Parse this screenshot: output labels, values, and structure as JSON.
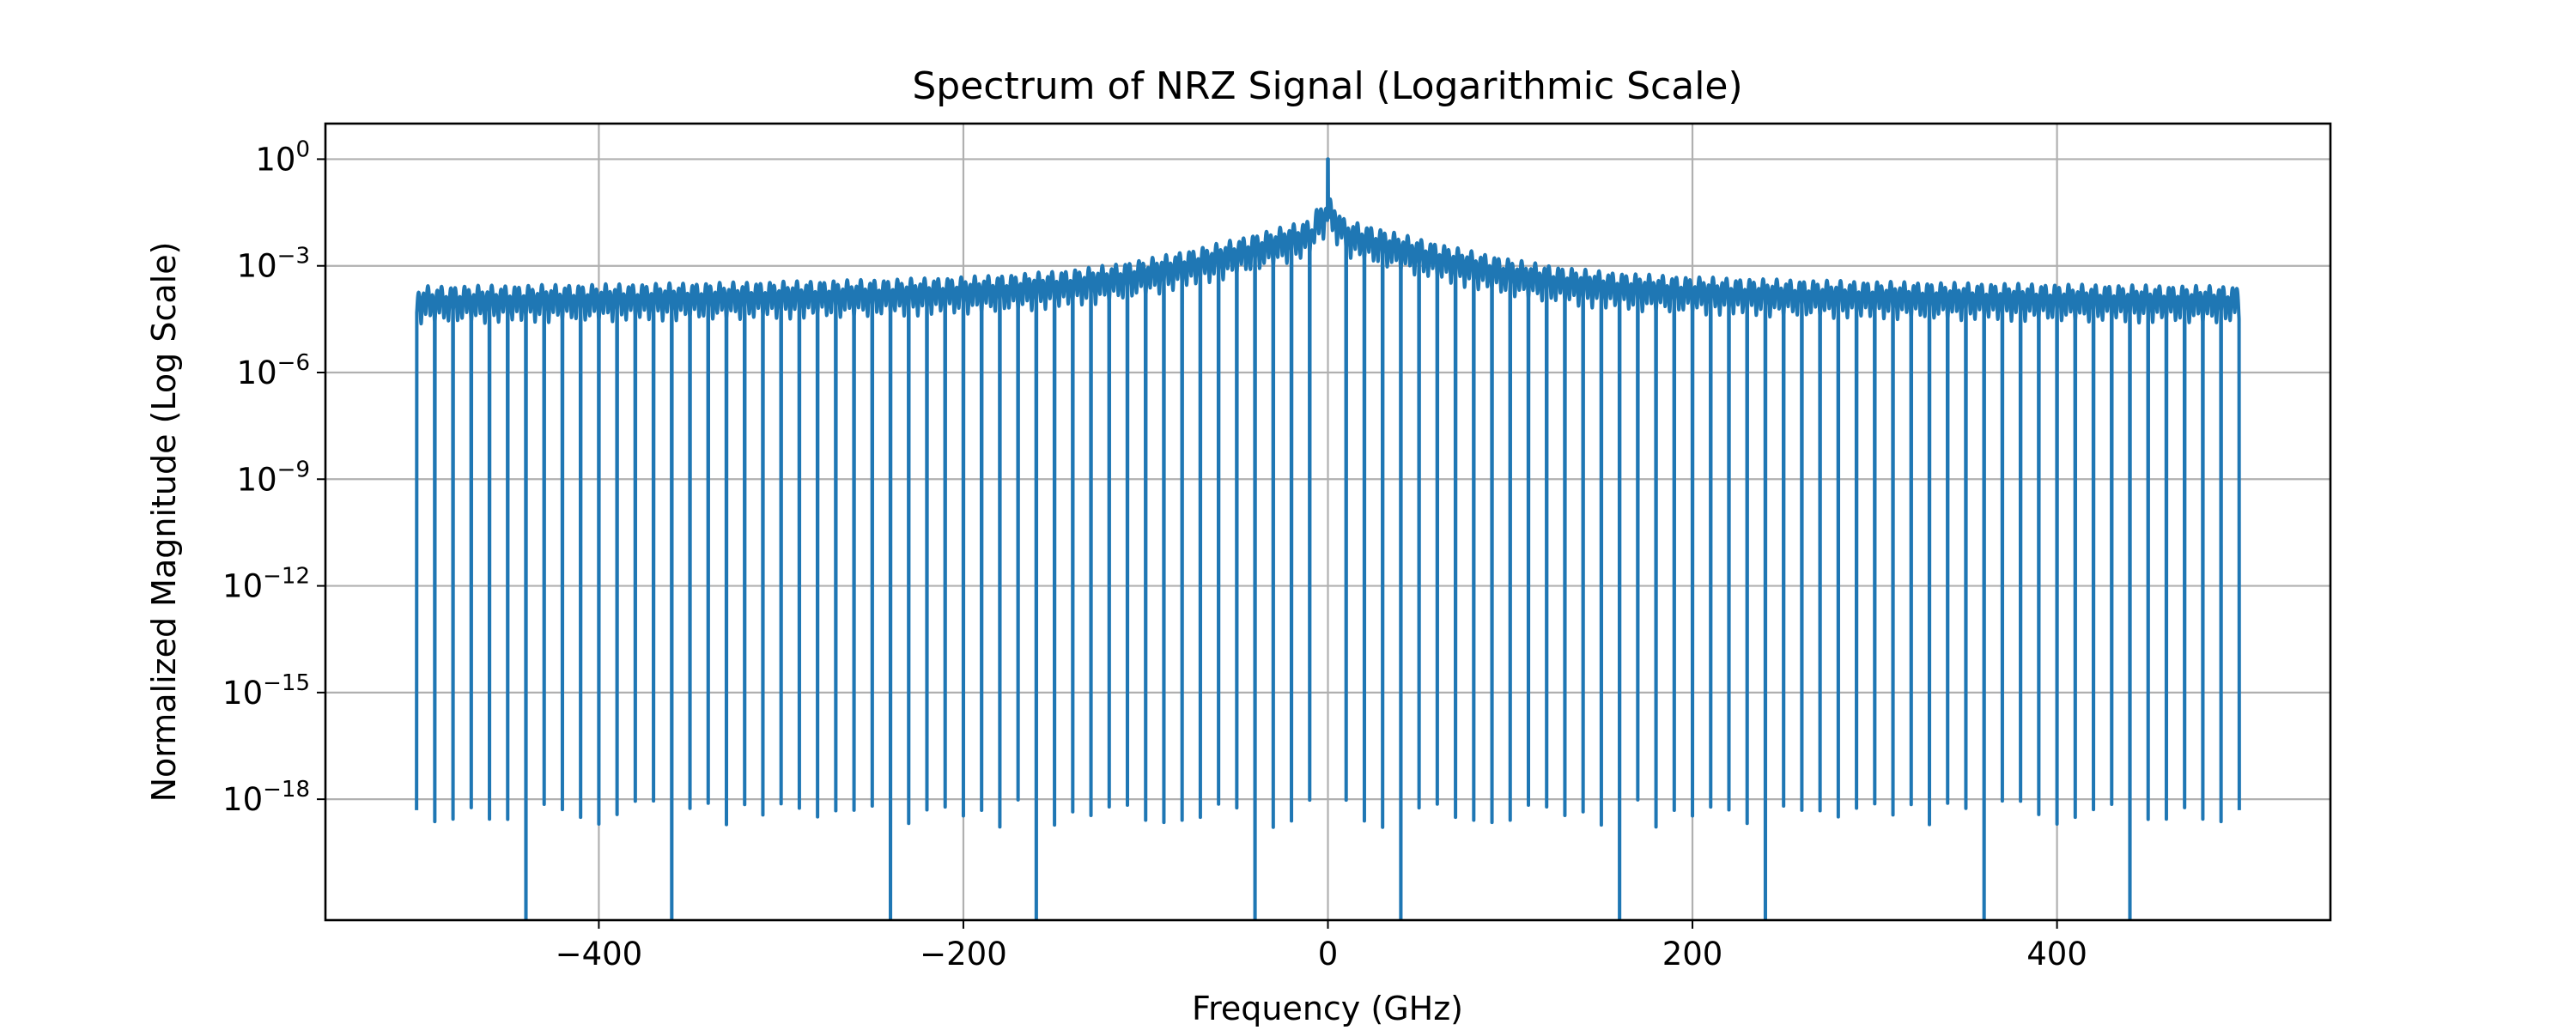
{
  "chart_data": {
    "type": "line",
    "title": "Spectrum of NRZ Signal (Logarithmic Scale)",
    "xlabel": "Frequency (GHz)",
    "ylabel": "Normalized Magnitude (Log Scale)",
    "yscale": "log",
    "grid": true,
    "legend": "none",
    "xlim": [
      -550,
      550
    ],
    "ylim_log10": [
      -21.4,
      1.0
    ],
    "x_ticks": [
      -400,
      -200,
      0,
      200,
      400
    ],
    "x_tick_labels": [
      "−400",
      "−200",
      "0",
      "200",
      "400"
    ],
    "y_ticks": [
      {
        "value": 1,
        "base": "10",
        "exp": "0"
      },
      {
        "value": 0.001,
        "base": "10",
        "exp": "−3"
      },
      {
        "value": 1e-06,
        "base": "10",
        "exp": "−6"
      },
      {
        "value": 1e-09,
        "base": "10",
        "exp": "−9"
      },
      {
        "value": 1e-12,
        "base": "10",
        "exp": "−12"
      },
      {
        "value": 1e-15,
        "base": "10",
        "exp": "−15"
      },
      {
        "value": 1e-18,
        "base": "10",
        "exp": "−18"
      }
    ],
    "series": [
      {
        "color": "#1f77b4",
        "x_range": [
          -500,
          500
        ],
        "peak": {
          "x": 0,
          "y": 1
        },
        "envelope": "sinc-like decay from the DC peak to a plateau of about 1e-4 between 1e-5 and 1e-3",
        "null_spacing_ghz": 10,
        "null_depth": 1e-18,
        "deep_nulls_ghz": [
          -440,
          -360,
          -240,
          -160,
          -40,
          40,
          160,
          240,
          360,
          440
        ]
      }
    ]
  }
}
